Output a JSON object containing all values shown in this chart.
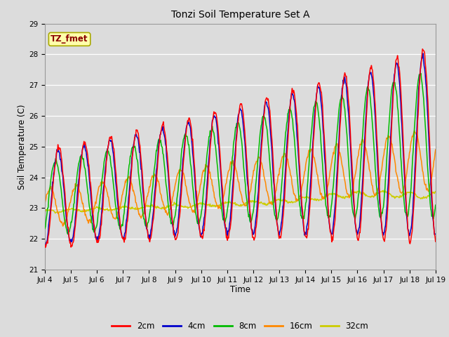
{
  "title": "Tonzi Soil Temperature Set A",
  "xlabel": "Time",
  "ylabel": "Soil Temperature (C)",
  "ylim": [
    21.0,
    29.0
  ],
  "yticks": [
    21.0,
    22.0,
    23.0,
    24.0,
    25.0,
    26.0,
    27.0,
    28.0,
    29.0
  ],
  "annotation_text": "TZ_fmet",
  "series_colors": {
    "2cm": "#ff0000",
    "4cm": "#0000cc",
    "8cm": "#00bb00",
    "16cm": "#ff8800",
    "32cm": "#cccc00"
  },
  "fig_bg": "#dcdcdc",
  "plot_bg": "#dcdcdc",
  "n_points": 720,
  "x_start": 4.0,
  "x_end": 19.0,
  "xtick_positions": [
    4,
    5,
    6,
    7,
    8,
    9,
    10,
    11,
    12,
    13,
    14,
    15,
    16,
    17,
    18,
    19
  ],
  "xtick_labels": [
    "Jul 4",
    "Jul 5",
    "Jul 6",
    "Jul 7",
    "Jul 8",
    "Jul 9",
    "Jul 10",
    "Jul 11",
    "Jul 12",
    "Jul 13",
    "Jul 14",
    "Jul 15",
    "Jul 16",
    "Jul 17",
    "Jul 18",
    "Jul 19"
  ]
}
